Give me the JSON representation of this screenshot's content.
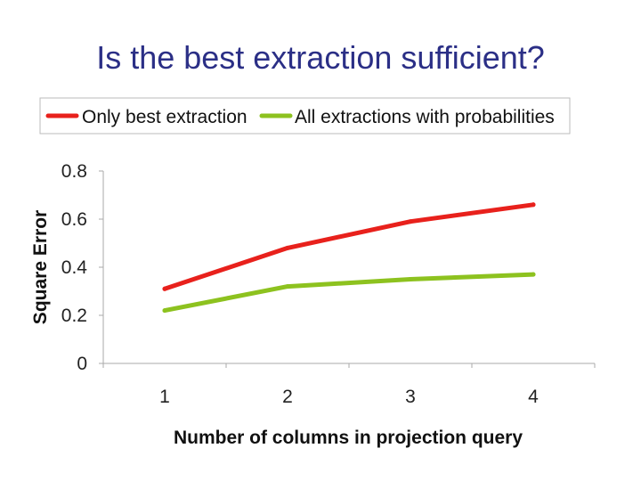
{
  "slide": {
    "title": "Is the best extraction sufficient?"
  },
  "chart_data": {
    "type": "line",
    "x": [
      1,
      2,
      3,
      4
    ],
    "xlabel": "Number of columns in projection query",
    "ylabel": "Square Error",
    "ylim": [
      0,
      0.8
    ],
    "yticks": [
      "0",
      "0.2",
      "0.4",
      "0.6",
      "0.8"
    ],
    "xticks": [
      "1",
      "2",
      "3",
      "4"
    ],
    "grid": false,
    "legend_position": "top",
    "series": [
      {
        "name": "Only best extraction",
        "color": "#e8211c",
        "values": [
          0.31,
          0.48,
          0.59,
          0.66
        ]
      },
      {
        "name": "All extractions with probabilities",
        "color": "#8dc21f",
        "values": [
          0.22,
          0.32,
          0.35,
          0.37
        ]
      }
    ]
  }
}
